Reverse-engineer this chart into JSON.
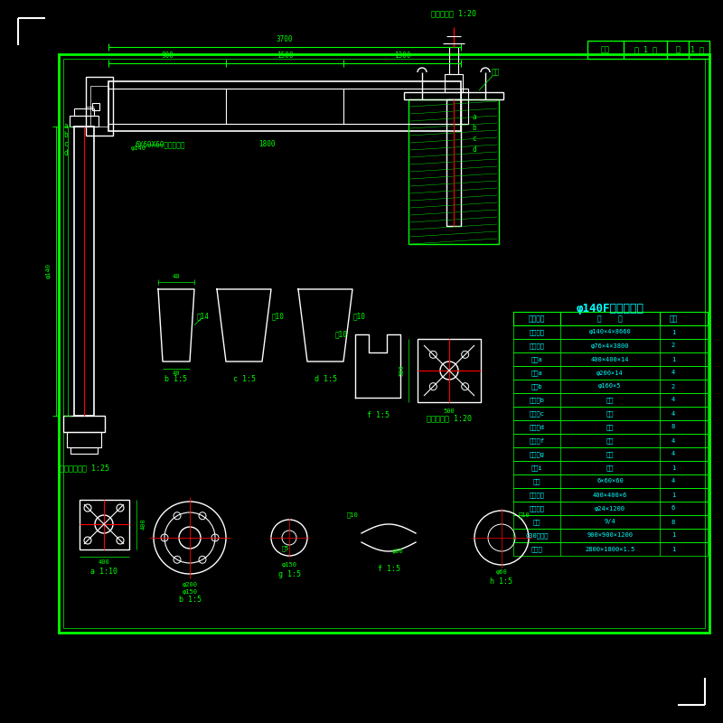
{
  "bg_color": "#000000",
  "border_color": "#00FF00",
  "line_color": "#00FF00",
  "text_color": "#00FF00",
  "cyan_color": "#00FFFF",
  "red_color": "#FF0000",
  "white_color": "#FFFFFF",
  "title": "φ140F杆材料清单",
  "page_info": "图幅  第 1 页  共 1 页",
  "table_headers": [
    "材料名称",
    "规    格",
    "件数"
  ],
  "table_rows": [
    [
      "立柱钢管",
      "φ140×4×8660",
      "1"
    ],
    [
      "横梁钢管",
      "φ76×4×3800",
      "2"
    ],
    [
      "底板a",
      "400×400×14",
      "1"
    ],
    [
      "法兰a",
      "φ200×14",
      "4"
    ],
    [
      "盘板b",
      "φ160×5",
      "2"
    ],
    [
      "加强筋b",
      "如图",
      "4"
    ],
    [
      "加强筋c",
      "如图",
      "4"
    ],
    [
      "加强筋d",
      "如图",
      "8"
    ],
    [
      "加强筋f",
      "如图",
      "4"
    ],
    [
      "加强筋g",
      "如图",
      "4"
    ],
    [
      "盖板i",
      "如图",
      "1"
    ],
    [
      "角铁",
      "6×60×60",
      "4"
    ],
    [
      "基础面板",
      "400×400×6",
      "1"
    ],
    [
      "地角螺栓",
      "φ24×1200",
      "6"
    ],
    [
      "螺栓",
      "9/4",
      "8"
    ],
    [
      "C30混凝土",
      "900×900×1200",
      "1"
    ],
    [
      "标志牌",
      "2800×1800×1.5",
      "1"
    ]
  ],
  "label_a": "基础杆立面图 1:25",
  "label_b": "b 1:5",
  "label_c": "c 1:5",
  "label_d": "d 1:5",
  "label_e": "基础立面图 1:20",
  "label_f": "f 1:5",
  "label_g": "基础平面图 1:20",
  "label_a2": "a 1:10",
  "label_b2": "b 1:5",
  "label_g2": "g 1:5",
  "label_f2": "f 1:5",
  "label_h": "h 1:5"
}
